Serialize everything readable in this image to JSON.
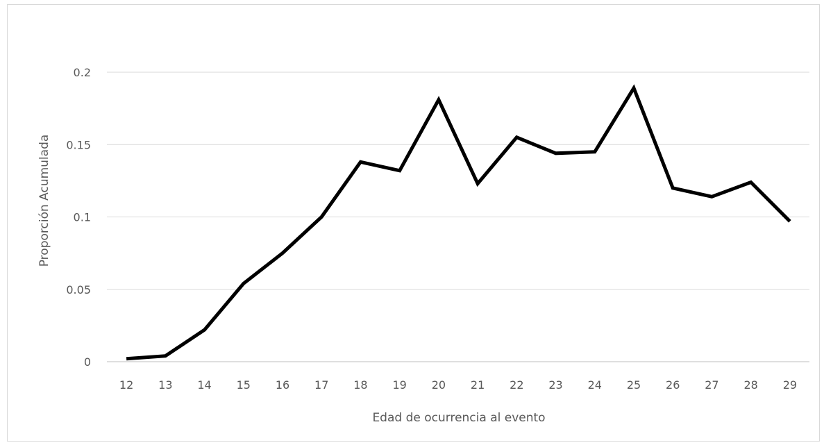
{
  "chart_data": {
    "type": "line",
    "title": "",
    "xlabel": "Edad de ocurrencia al evento",
    "ylabel": "Proporción Acumulada",
    "ylim": [
      0,
      0.2
    ],
    "yticks": [
      "0",
      "0.05",
      "0.1",
      "0.15",
      "0.2"
    ],
    "ytick_values": [
      0,
      0.05,
      0.1,
      0.15,
      0.2
    ],
    "grid": true,
    "legend": "none",
    "categories": [
      "12",
      "13",
      "14",
      "15",
      "16",
      "17",
      "18",
      "19",
      "20",
      "21",
      "22",
      "23",
      "24",
      "25",
      "26",
      "27",
      "28",
      "29"
    ],
    "series": [
      {
        "values": [
          0.002,
          0.004,
          0.022,
          0.054,
          0.075,
          0.1,
          0.138,
          0.132,
          0.181,
          0.123,
          0.155,
          0.144,
          0.145,
          0.189,
          0.12,
          0.114,
          0.124,
          0.097
        ],
        "color": "#000000"
      }
    ]
  }
}
